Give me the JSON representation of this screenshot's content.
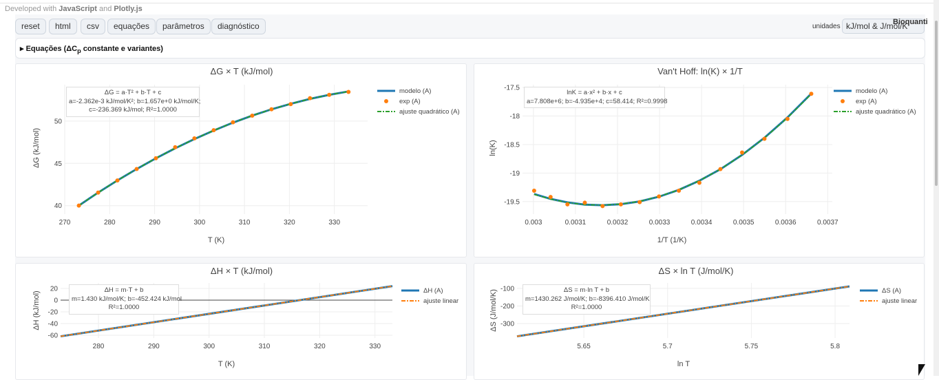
{
  "header": {
    "dev_prefix": "Developed with ",
    "dev_js": "JavaScript",
    "dev_and": " and ",
    "dev_plotly": "Plotly.js"
  },
  "toolbar": {
    "buttons": [
      "reset",
      "html",
      "csv",
      "equações",
      "parâmetros",
      "diagnóstico"
    ],
    "units_label": "unidades",
    "units_value": "kJ/mol & J/mol/K",
    "brand": "Bioquanti"
  },
  "equations": {
    "label": "Equações (ΔC",
    "sub": "p",
    "suffix": " constante e variantes)"
  },
  "colors": {
    "blue": "#1f77b4",
    "orange": "#ff7f0e",
    "green": "#2ca02c"
  },
  "chart_data": [
    {
      "type": "line",
      "title": "ΔG × T (kJ/mol)",
      "xlabel": "T (K)",
      "ylabel": "ΔG (kJ/mol)",
      "xlim": [
        270,
        337.4
      ],
      "ylim": [
        39,
        54.3
      ],
      "xticks": [
        270,
        280,
        290,
        300,
        310,
        320,
        330
      ],
      "yticks": [
        40,
        45,
        50
      ],
      "annotation": [
        "ΔG = a·T² + b·T + c",
        "a=-2.362e-3 kJ/mol/K²; b=1.657e+0 kJ/mol/K;",
        "c=-236.369 kJ/mol; R²=1.0000"
      ],
      "legend": [
        "modelo (A)",
        "exp (A)",
        "ajuste quadrático (A)"
      ],
      "x": [
        273.15,
        277.44,
        281.72,
        286.01,
        290.29,
        294.58,
        298.86,
        303.15,
        307.44,
        311.72,
        316.01,
        320.29,
        324.58,
        328.86,
        333.15
      ],
      "series": [
        {
          "name": "modelo (A)",
          "kind": "line",
          "y": [
            40.01,
            41.54,
            42.98,
            44.33,
            45.6,
            46.78,
            47.87,
            48.88,
            49.81,
            50.64,
            51.39,
            52.04,
            52.62,
            53.1,
            53.5
          ]
        },
        {
          "name": "exp (A)",
          "kind": "markers",
          "y": [
            40.01,
            41.54,
            42.98,
            44.33,
            45.6,
            46.9,
            47.95,
            48.92,
            49.85,
            50.64,
            51.39,
            52.0,
            52.7,
            53.1,
            53.45
          ]
        },
        {
          "name": "ajuste quadrático (A)",
          "kind": "dashdot",
          "y": [
            40.01,
            41.54,
            42.98,
            44.33,
            45.6,
            46.78,
            47.87,
            48.88,
            49.81,
            50.64,
            51.39,
            52.04,
            52.62,
            53.1,
            53.5
          ]
        }
      ]
    },
    {
      "type": "line",
      "title": "Van't Hoff: ln(K) × 1/T",
      "xlabel": "1/T (1/K)",
      "ylabel": "ln(K)",
      "xlim": [
        0.002974,
        0.003711
      ],
      "ylim": [
        -19.72,
        -17.45
      ],
      "xticks": [
        0.003,
        0.0031,
        0.0032,
        0.0033,
        0.0034,
        0.0035,
        0.0036,
        0.0037
      ],
      "yticks": [
        -17.5,
        -18,
        -18.5,
        -19,
        -19.5
      ],
      "annotation": [
        "lnK = a·x² + b·x + c",
        "a=7.808e+6; b=-4.935e+4; c=58.414; R²=0.9998"
      ],
      "legend": [
        "modelo (A)",
        "exp (A)",
        "ajuste quadrático (A)"
      ],
      "x": [
        0.0030017,
        0.0030408,
        0.0030809,
        0.0031222,
        0.0031645,
        0.003208,
        0.0032527,
        0.0032987,
        0.003346,
        0.0033947,
        0.0034448,
        0.0034964,
        0.0035496,
        0.0036044,
        0.003661
      ],
      "series": [
        {
          "name": "modelo (A)",
          "kind": "line",
          "y": [
            -19.368,
            -19.453,
            -19.515,
            -19.554,
            -19.564,
            -19.546,
            -19.498,
            -19.415,
            -19.295,
            -19.135,
            -18.933,
            -18.682,
            -18.381,
            -18.024,
            -17.606
          ]
        },
        {
          "name": "exp (A)",
          "kind": "markers",
          "y": [
            -19.31,
            -19.42,
            -19.55,
            -19.52,
            -19.58,
            -19.55,
            -19.51,
            -19.41,
            -19.31,
            -19.17,
            -18.93,
            -18.64,
            -18.4,
            -18.05,
            -17.61
          ]
        },
        {
          "name": "ajuste quadrático (A)",
          "kind": "dashdot",
          "y": [
            -19.375,
            -19.458,
            -19.518,
            -19.555,
            -19.563,
            -19.544,
            -19.495,
            -19.412,
            -19.293,
            -19.134,
            -18.933,
            -18.684,
            -18.385,
            -18.03,
            -17.615
          ]
        }
      ]
    },
    {
      "type": "line",
      "title": "ΔH × T (kJ/mol)",
      "xlabel": "T (K)",
      "ylabel": "ΔH (kJ/mol)",
      "xlim": [
        273.15,
        333.15
      ],
      "ylim": [
        -64.7,
        29.4
      ],
      "xticks": [
        280,
        290,
        300,
        310,
        320,
        330
      ],
      "yticks": [
        20,
        0,
        -20,
        -40,
        -60
      ],
      "zeroline": true,
      "annotation": [
        "ΔH = m·T + b",
        "m=1.430 kJ/mol/K; b=-452.424 kJ/mol",
        "R²=1.0000"
      ],
      "legend": [
        "ΔH (A)",
        "ajuste linear"
      ],
      "x": [
        273.15,
        333.15
      ],
      "series": [
        {
          "name": "ΔH (A)",
          "kind": "line",
          "y": [
            -61.82,
            23.98
          ]
        },
        {
          "name": "ajuste linear",
          "kind": "dash-orange",
          "y": [
            -61.82,
            23.98
          ]
        }
      ]
    },
    {
      "type": "line",
      "title": "ΔS × ln T (J/mol/K)",
      "xlabel": "ln T",
      "ylabel": "ΔS (J/mol/K)",
      "xlim": [
        5.6101,
        5.8086
      ],
      "ylim": [
        -382,
        -69
      ],
      "xticks": [
        5.65,
        5.7,
        5.75,
        5.8
      ],
      "yticks": [
        -100,
        -200,
        -300
      ],
      "annotation": [
        "ΔS = m·ln T + b",
        "m=1430.262 J/mol/K; b=-8396.410 J/mol/K",
        "R²=1.0000"
      ],
      "legend": [
        "ΔS (A)",
        "ajuste linear"
      ],
      "x": [
        5.6101,
        5.8086
      ],
      "series": [
        {
          "name": "ΔS (A)",
          "kind": "line",
          "y": [
            -372.5,
            -88.6
          ]
        },
        {
          "name": "ajuste linear",
          "kind": "dash-orange",
          "y": [
            -372.5,
            -88.6
          ]
        }
      ]
    }
  ]
}
